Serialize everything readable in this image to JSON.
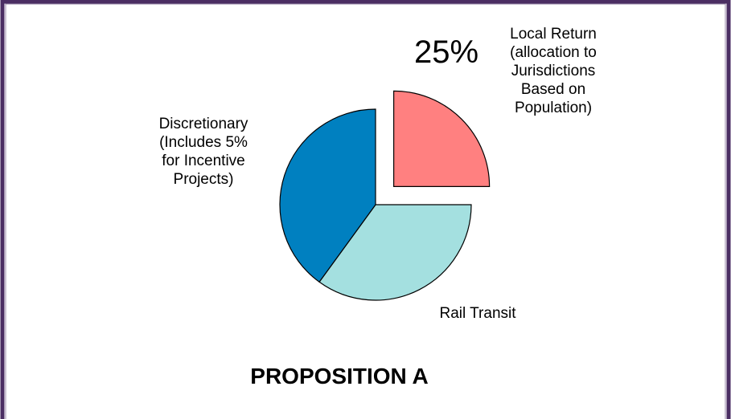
{
  "chart_data": {
    "type": "pie",
    "title": "PROPOSITION A",
    "categories": [
      "Local Return\n(allocation to\nJurisdictions\nBased on\nPopulation)",
      "Rail Transit",
      "Discretionary\n(Includes 5%\nfor Incentive\nProjects)"
    ],
    "values": [
      25,
      35,
      40
    ],
    "value_labels": [
      "25%",
      null,
      null
    ],
    "colors": [
      "#ff8080",
      "#a4e0e0",
      "#0080c0"
    ],
    "exploded": [
      true,
      false,
      false
    ]
  }
}
